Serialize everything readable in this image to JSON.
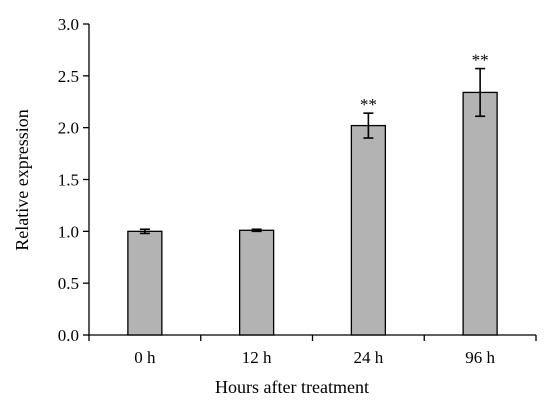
{
  "chart_data": {
    "type": "bar",
    "title": "",
    "xlabel": "Hours after treatment",
    "ylabel": "Relative expression",
    "categories": [
      "0 h",
      "12 h",
      "24 h",
      "96 h"
    ],
    "values": [
      1.0,
      1.01,
      2.02,
      2.34
    ],
    "errors": [
      0.02,
      0.01,
      0.12,
      0.23
    ],
    "significance": [
      "",
      "",
      "**",
      "**"
    ],
    "ylim": [
      0,
      3.0
    ],
    "yticks": [
      "0.0",
      "0.5",
      "1.0",
      "1.5",
      "2.0",
      "2.5",
      "3.0"
    ],
    "grid": false,
    "legend": "none",
    "colors": {
      "bar_fill": "#b3b3b3",
      "bar_stroke": "#000000",
      "axis": "#000000"
    }
  }
}
